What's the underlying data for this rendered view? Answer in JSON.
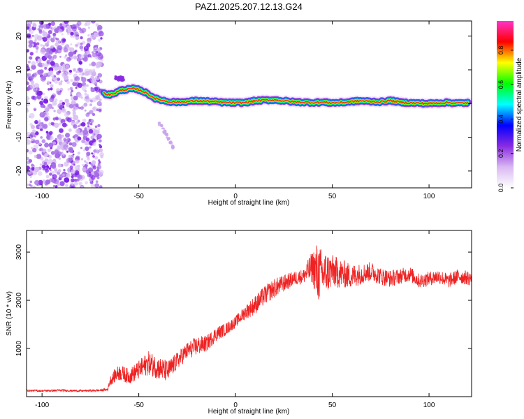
{
  "chart_data": [
    {
      "type": "heatmap",
      "title": "PAZ1.2025.207.12.13.G24",
      "xlabel": "Height of straight line (km)",
      "ylabel": "Frequency (Hz)",
      "xlim": [
        -108,
        122
      ],
      "ylim": [
        -25,
        24.5
      ],
      "x_ticks": [
        -100,
        -50,
        0,
        50,
        100
      ],
      "y_ticks": [
        -20,
        -10,
        0,
        10,
        20
      ],
      "colorbar": {
        "label": "Normalized spectral amplitude",
        "range": [
          0.0,
          0.97
        ],
        "ticks": [
          0.0,
          0.2,
          0.4,
          0.6,
          0.8
        ],
        "tick_labels": [
          "0.0",
          "0.2",
          "0.4",
          "0.6",
          "0.8"
        ],
        "colormap": [
          "#ffffff",
          "#d9b8f2",
          "#8a2be2",
          "#0000ff",
          "#00ffff",
          "#00ff00",
          "#ffff00",
          "#ff0000",
          "#ff33cc"
        ]
      },
      "noise_region": {
        "x_range": [
          -108,
          -69
        ],
        "y_range": [
          -25,
          24.5
        ],
        "level": 0.05
      },
      "signal_ridge": {
        "x": [
          -68,
          -65,
          -62,
          -59,
          -56,
          -53,
          -50,
          -47,
          -44,
          -41,
          -38,
          -35,
          -32,
          -30,
          -25,
          -20,
          -15,
          -10,
          -5,
          0,
          5,
          10,
          15,
          20,
          25,
          30,
          35,
          40,
          45,
          50,
          55,
          60,
          65,
          70,
          75,
          80,
          85,
          90,
          95,
          100,
          105,
          110,
          115,
          120
        ],
        "frequency": [
          3.0,
          2.6,
          3.2,
          4.0,
          4.2,
          4.4,
          4.1,
          3.4,
          2.4,
          1.4,
          1.0,
          0.6,
          0.5,
          0.4,
          0.6,
          0.8,
          0.7,
          0.5,
          0.3,
          0.2,
          0.3,
          0.8,
          1.0,
          1.1,
          0.8,
          0.5,
          0.4,
          0.3,
          0.4,
          0.2,
          0.3,
          0.6,
          0.8,
          0.6,
          0.5,
          0.9,
          0.4,
          0.2,
          0.1,
          0.0,
          0.2,
          0.3,
          0.1,
          0.2
        ]
      },
      "secondary_features": [
        {
          "x": [
            -40,
            -32
          ],
          "frequency": [
            -5,
            -13
          ],
          "level": 0.15
        },
        {
          "x": [
            -62,
            -58
          ],
          "frequency": [
            7.5,
            7.5
          ],
          "level": 0.45
        }
      ]
    },
    {
      "type": "line",
      "xlabel": "Height of straight line (km)",
      "ylabel": "SNR (10 * v/v)",
      "xlim": [
        -108,
        122
      ],
      "ylim": [
        0,
        3450
      ],
      "x_ticks": [
        -100,
        -50,
        0,
        50,
        100
      ],
      "y_ticks": [
        1000,
        2000,
        3000
      ],
      "color": "#ee2222",
      "series": [
        {
          "x": [
            -108,
            -100,
            -90,
            -80,
            -70,
            -66,
            -65,
            -62,
            -60,
            -55,
            -50,
            -45,
            -40,
            -35,
            -30,
            -25,
            -20,
            -15,
            -10,
            -5,
            0,
            5,
            10,
            15,
            20,
            25,
            30,
            35,
            40,
            42,
            45,
            50,
            55,
            60,
            65,
            70,
            75,
            80,
            85,
            90,
            95,
            100,
            105,
            110,
            115,
            122
          ],
          "values": [
            130,
            120,
            130,
            120,
            130,
            150,
            320,
            450,
            500,
            420,
            550,
            700,
            600,
            520,
            750,
            950,
            1050,
            1100,
            1300,
            1400,
            1550,
            1750,
            1900,
            2100,
            2250,
            2350,
            2450,
            2500,
            2700,
            2550,
            2550,
            2600,
            2550,
            2500,
            2550,
            2600,
            2500,
            2450,
            2500,
            2550,
            2400,
            2450,
            2500,
            2400,
            2500,
            2450
          ],
          "noise": [
            20,
            20,
            25,
            20,
            25,
            30,
            90,
            150,
            170,
            160,
            200,
            250,
            240,
            230,
            180,
            180,
            200,
            170,
            150,
            130,
            120,
            150,
            200,
            200,
            200,
            180,
            150,
            150,
            350,
            650,
            500,
            350,
            300,
            250,
            220,
            200,
            180,
            180,
            160,
            160,
            150,
            150,
            150,
            150,
            150,
            150
          ]
        }
      ]
    }
  ]
}
